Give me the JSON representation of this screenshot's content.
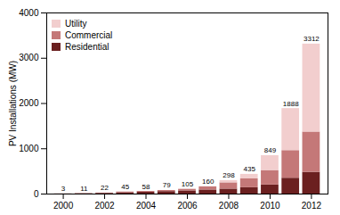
{
  "chart_data": {
    "type": "bar",
    "stacked": true,
    "x": [
      2000,
      2001,
      2002,
      2003,
      2004,
      2005,
      2006,
      2007,
      2008,
      2009,
      2010,
      2011,
      2012
    ],
    "series": [
      {
        "name": "Residential",
        "color": "#6b2020",
        "values": [
          3,
          8,
          16,
          30,
          40,
          55,
          70,
          90,
          110,
          140,
          200,
          350,
          480
        ]
      },
      {
        "name": "Commercial",
        "color": "#c47878",
        "values": [
          0,
          3,
          6,
          15,
          18,
          24,
          35,
          70,
          138,
          195,
          320,
          610,
          890
        ]
      },
      {
        "name": "Utility",
        "color": "#f2cece",
        "values": [
          0,
          0,
          0,
          0,
          0,
          0,
          0,
          0,
          50,
          100,
          329,
          928,
          1942
        ]
      }
    ],
    "totals": [
      3,
      11,
      22,
      45,
      58,
      79,
      105,
      160,
      298,
      435,
      849,
      1888,
      3312
    ],
    "ylabel": "PV Installations (MW)",
    "xlim": [
      1999.2,
      2012.8
    ],
    "xticks": [
      2000,
      2002,
      2004,
      2006,
      2008,
      2010,
      2012
    ],
    "ylim": [
      0,
      4000
    ],
    "yticks": [
      0,
      1000,
      2000,
      3000,
      4000
    ],
    "legend": "upper left",
    "grid": false
  }
}
